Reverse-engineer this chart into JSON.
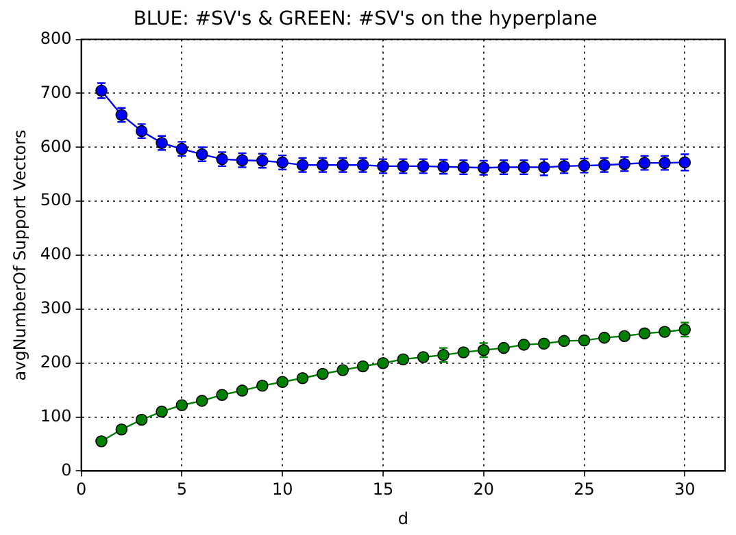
{
  "chart_data": {
    "type": "line",
    "title": "BLUE: #SV's & GREEN: #SV's on the hyperplane",
    "xlabel": "d",
    "ylabel": "avgNumberOf Support Vectors",
    "x": [
      1,
      2,
      3,
      4,
      5,
      6,
      7,
      8,
      9,
      10,
      11,
      12,
      13,
      14,
      15,
      16,
      17,
      18,
      19,
      20,
      21,
      22,
      23,
      24,
      25,
      26,
      27,
      28,
      29,
      30
    ],
    "series": [
      {
        "color": "#0000ff",
        "values": [
          705,
          660,
          630,
          608,
          597,
          587,
          578,
          576,
          575,
          572,
          567,
          567,
          567,
          567,
          565,
          565,
          565,
          564,
          563,
          562,
          563,
          563,
          563,
          565,
          566,
          567,
          569,
          571,
          571,
          572
        ],
        "errors": [
          14,
          13,
          13,
          13,
          13,
          13,
          13,
          13,
          13,
          13,
          13,
          13,
          13,
          13,
          13,
          13,
          13,
          13,
          13,
          13,
          13,
          13,
          15,
          13,
          13,
          13,
          13,
          13,
          13,
          15
        ]
      },
      {
        "color": "#008000",
        "values": [
          55,
          77,
          95,
          110,
          122,
          130,
          141,
          149,
          158,
          165,
          172,
          180,
          187,
          194,
          200,
          207,
          211,
          215,
          220,
          224,
          228,
          234,
          236,
          241,
          242,
          247,
          250,
          255,
          258,
          262
        ],
        "errors": [
          null,
          null,
          null,
          null,
          null,
          null,
          null,
          null,
          null,
          null,
          null,
          null,
          null,
          null,
          null,
          null,
          null,
          13,
          null,
          13,
          null,
          null,
          null,
          null,
          null,
          null,
          null,
          null,
          null,
          13
        ]
      }
    ],
    "xlim": [
      0,
      32
    ],
    "xticks": [
      0,
      5,
      10,
      15,
      20,
      25,
      30
    ],
    "ylim": [
      0,
      800
    ],
    "yticks": [
      0,
      100,
      200,
      300,
      400,
      500,
      600,
      700,
      800
    ],
    "grid": true,
    "legend": false,
    "marker": "circle",
    "line_style": "solid"
  }
}
